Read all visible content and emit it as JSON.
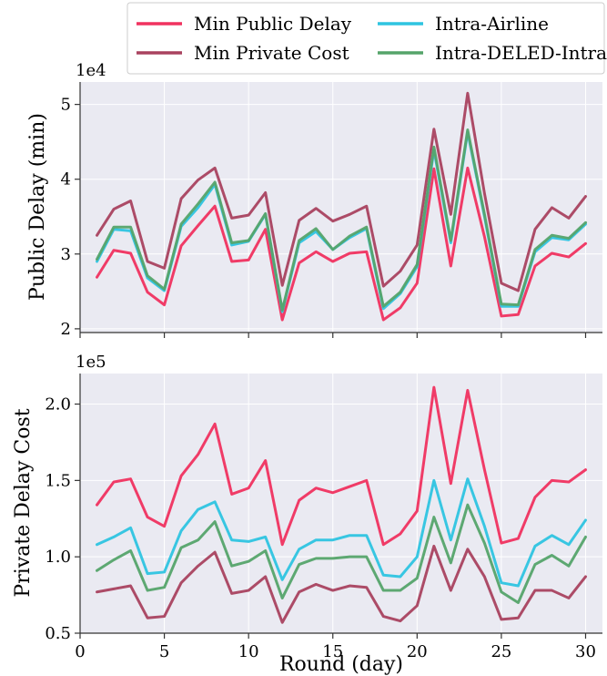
{
  "legend": {
    "items": [
      {
        "key": "min_public_delay",
        "label": "Min Public Delay",
        "color": "#f0325f"
      },
      {
        "key": "min_private_cost",
        "label": "Min Private Cost",
        "color": "#a9425f"
      },
      {
        "key": "intra_airline",
        "label": "Intra-Airline",
        "color": "#2ec4e0"
      },
      {
        "key": "intra_deled_intra",
        "label": "Intra-DELED-Intra",
        "color": "#55a46a"
      }
    ]
  },
  "chart_data": [
    {
      "type": "line",
      "xlabel": "",
      "ylabel": "Public Delay (min)",
      "scale_label": "1e4",
      "xlim": [
        0,
        31
      ],
      "ylim": [
        1.95,
        5.3
      ],
      "xticks": [
        0,
        5,
        10,
        15,
        20,
        25,
        30
      ],
      "xtick_labels": [
        "",
        "",
        "",
        "",
        "",
        "",
        ""
      ],
      "yticks": [
        2,
        3,
        4,
        5
      ],
      "ytick_labels": [
        "2",
        "3",
        "4",
        "5"
      ],
      "grid": true,
      "x": [
        1,
        2,
        3,
        4,
        5,
        6,
        7,
        8,
        9,
        10,
        11,
        12,
        13,
        14,
        15,
        16,
        17,
        18,
        19,
        20,
        21,
        22,
        23,
        24,
        25,
        26,
        27,
        28,
        29,
        30
      ],
      "series": [
        {
          "name": "Min Public Delay",
          "key": "min_public_delay",
          "values": [
            2.69,
            3.05,
            3.01,
            2.49,
            2.32,
            3.11,
            3.38,
            3.64,
            2.9,
            2.92,
            3.33,
            2.12,
            2.88,
            3.03,
            2.9,
            3.01,
            3.03,
            2.12,
            2.28,
            2.61,
            4.14,
            2.84,
            4.15,
            3.23,
            2.17,
            2.19,
            2.84,
            3.01,
            2.96,
            3.14
          ]
        },
        {
          "name": "Min Private Cost",
          "key": "min_private_cost",
          "values": [
            3.25,
            3.6,
            3.71,
            2.9,
            2.81,
            3.74,
            3.99,
            4.15,
            3.48,
            3.52,
            3.82,
            2.58,
            3.45,
            3.61,
            3.44,
            3.53,
            3.64,
            2.57,
            2.77,
            3.12,
            4.67,
            3.53,
            5.15,
            3.81,
            2.61,
            2.51,
            3.33,
            3.62,
            3.48,
            3.77
          ]
        },
        {
          "name": "Intra-Airline",
          "key": "intra_airline",
          "values": [
            2.9,
            3.33,
            3.31,
            2.68,
            2.51,
            3.37,
            3.62,
            3.93,
            3.12,
            3.17,
            3.53,
            2.23,
            3.15,
            3.3,
            3.06,
            3.22,
            3.34,
            2.27,
            2.47,
            2.83,
            4.39,
            3.15,
            4.63,
            3.5,
            2.3,
            2.3,
            3.03,
            3.22,
            3.19,
            3.4
          ]
        },
        {
          "name": "Intra-DELED-Intra",
          "key": "intra_deled_intra",
          "values": [
            2.93,
            3.36,
            3.36,
            2.71,
            2.53,
            3.4,
            3.67,
            3.96,
            3.15,
            3.18,
            3.54,
            2.25,
            3.18,
            3.34,
            3.06,
            3.24,
            3.36,
            2.3,
            2.49,
            2.86,
            4.43,
            3.18,
            4.66,
            3.53,
            2.33,
            2.32,
            3.06,
            3.25,
            3.21,
            3.42
          ]
        }
      ]
    },
    {
      "type": "line",
      "xlabel": "Round (day)",
      "ylabel": "Private Delay Cost",
      "scale_label": "1e5",
      "xlim": [
        0,
        31
      ],
      "ylim": [
        0.5,
        2.2
      ],
      "xticks": [
        0,
        5,
        10,
        15,
        20,
        25,
        30
      ],
      "xtick_labels": [
        "0",
        "5",
        "10",
        "15",
        "20",
        "25",
        "30"
      ],
      "yticks": [
        0.5,
        1.0,
        1.5,
        2.0
      ],
      "ytick_labels": [
        "0.5",
        "1.0",
        "1.5",
        "2.0"
      ],
      "grid": true,
      "x": [
        1,
        2,
        3,
        4,
        5,
        6,
        7,
        8,
        9,
        10,
        11,
        12,
        13,
        14,
        15,
        16,
        17,
        18,
        19,
        20,
        21,
        22,
        23,
        24,
        25,
        26,
        27,
        28,
        29,
        30
      ],
      "series": [
        {
          "name": "Min Public Delay",
          "key": "min_public_delay",
          "values": [
            1.34,
            1.49,
            1.51,
            1.26,
            1.2,
            1.53,
            1.67,
            1.87,
            1.41,
            1.45,
            1.63,
            1.08,
            1.37,
            1.45,
            1.42,
            1.46,
            1.5,
            1.08,
            1.15,
            1.3,
            2.11,
            1.48,
            2.09,
            1.57,
            1.09,
            1.12,
            1.39,
            1.5,
            1.49,
            1.57
          ]
        },
        {
          "name": "Min Private Cost",
          "key": "min_private_cost",
          "values": [
            0.77,
            0.79,
            0.81,
            0.6,
            0.61,
            0.83,
            0.94,
            1.03,
            0.76,
            0.78,
            0.87,
            0.57,
            0.77,
            0.82,
            0.78,
            0.81,
            0.8,
            0.61,
            0.58,
            0.68,
            1.07,
            0.78,
            1.05,
            0.87,
            0.59,
            0.6,
            0.78,
            0.78,
            0.73,
            0.87
          ]
        },
        {
          "name": "Intra-Airline",
          "key": "intra_airline",
          "values": [
            1.08,
            1.13,
            1.19,
            0.89,
            0.9,
            1.17,
            1.31,
            1.36,
            1.11,
            1.1,
            1.13,
            0.85,
            1.05,
            1.11,
            1.11,
            1.14,
            1.14,
            0.88,
            0.87,
            1.0,
            1.5,
            1.11,
            1.51,
            1.2,
            0.83,
            0.81,
            1.07,
            1.14,
            1.08,
            1.24
          ]
        },
        {
          "name": "Intra-DELED-Intra",
          "key": "intra_deled_intra",
          "values": [
            0.91,
            0.98,
            1.04,
            0.78,
            0.8,
            1.06,
            1.11,
            1.23,
            0.94,
            0.97,
            1.04,
            0.73,
            0.95,
            0.99,
            0.99,
            1.0,
            1.0,
            0.78,
            0.78,
            0.86,
            1.26,
            0.96,
            1.34,
            1.09,
            0.77,
            0.7,
            0.95,
            1.01,
            0.94,
            1.13
          ]
        }
      ]
    }
  ]
}
